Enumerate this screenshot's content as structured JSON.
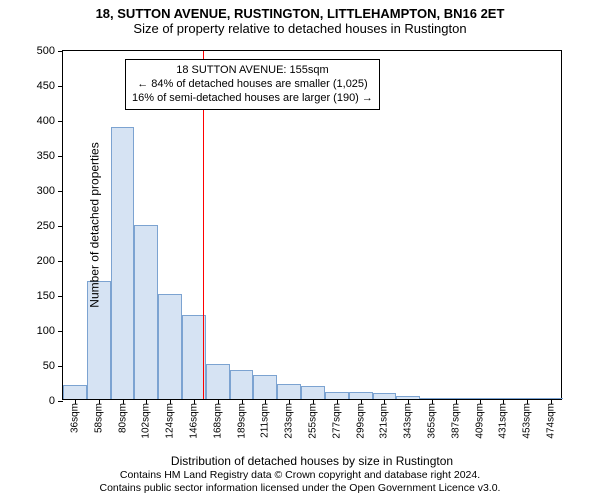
{
  "title_line1": "18, SUTTON AVENUE, RUSTINGTON, LITTLEHAMPTON, BN16 2ET",
  "title_line2": "Size of property relative to detached houses in Rustington",
  "chart": {
    "type": "histogram",
    "ylabel": "Number of detached properties",
    "xlabel": "Distribution of detached houses by size in Rustington",
    "ylim": [
      0,
      500
    ],
    "ytick_step": 50,
    "x_categories": [
      "36sqm",
      "58sqm",
      "80sqm",
      "102sqm",
      "124sqm",
      "146sqm",
      "168sqm",
      "189sqm",
      "211sqm",
      "233sqm",
      "255sqm",
      "277sqm",
      "299sqm",
      "321sqm",
      "343sqm",
      "365sqm",
      "387sqm",
      "409sqm",
      "431sqm",
      "453sqm",
      "474sqm"
    ],
    "values": [
      20,
      168,
      388,
      248,
      150,
      120,
      50,
      42,
      35,
      22,
      18,
      10,
      10,
      8,
      5,
      2,
      0,
      2,
      0,
      0,
      2
    ],
    "bar_fill": "#d6e3f3",
    "bar_border": "#7ca3d1",
    "background_color": "#ffffff",
    "axis_color": "#000000",
    "tick_fontsize": 11,
    "label_fontsize": 12
  },
  "reference_line": {
    "position_category_index": 5.4,
    "color": "#ff0000",
    "width": 1
  },
  "annotation": {
    "line1": "18 SUTTON AVENUE: 155sqm",
    "line2": "← 84% of detached houses are smaller (1,025)",
    "line3": "16% of semi-detached houses are larger (190) →",
    "border_color": "#000000",
    "background": "#ffffff",
    "fontsize": 11
  },
  "footer": {
    "line1": "Contains HM Land Registry data © Crown copyright and database right 2024.",
    "line2": "Contains public sector information licensed under the Open Government Licence v3.0."
  }
}
